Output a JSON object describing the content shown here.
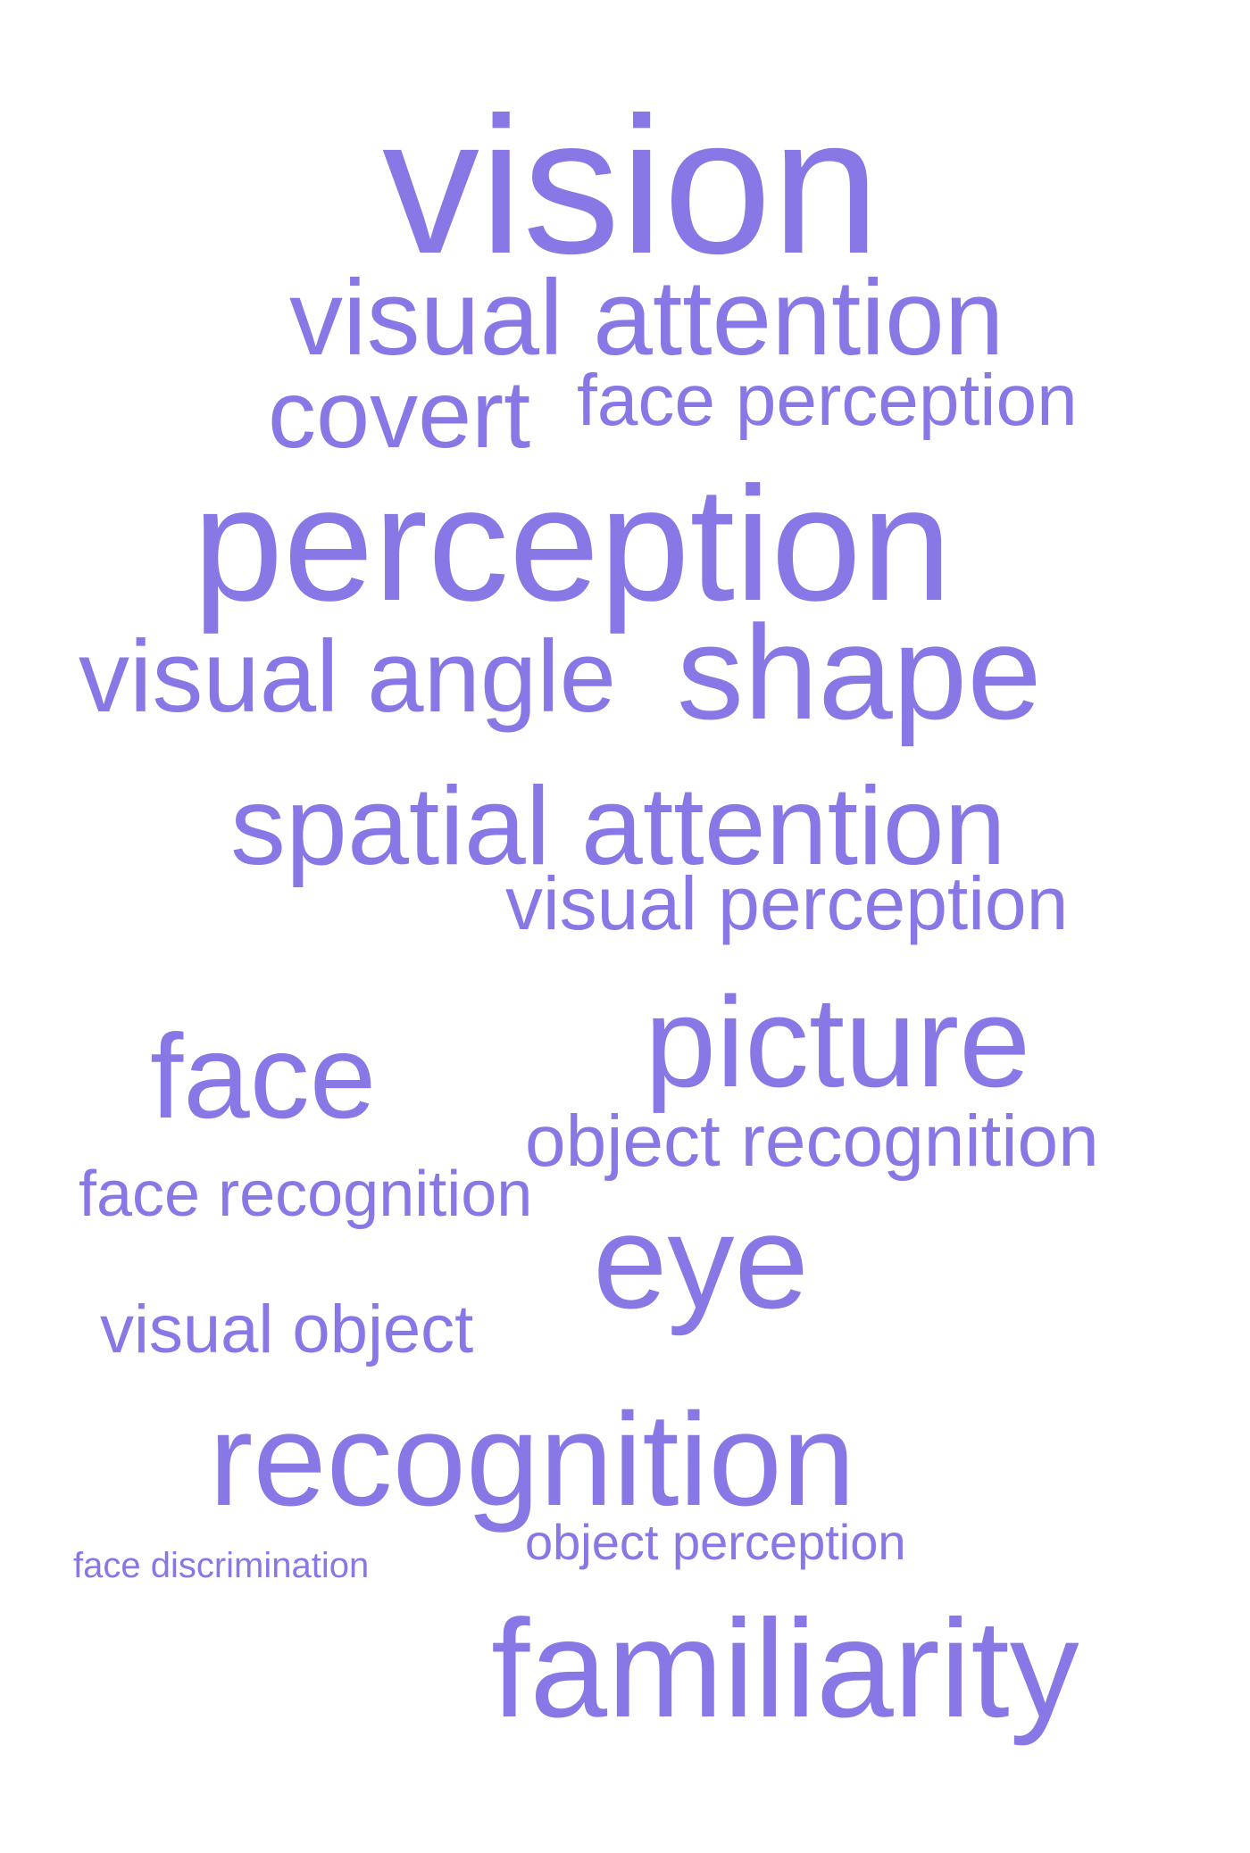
{
  "style": {
    "text_color": "#8878e6",
    "background": "#ffffff"
  },
  "words": [
    {
      "text": "vision"
    },
    {
      "text": "visual attention"
    },
    {
      "text": "covert"
    },
    {
      "text": "face perception"
    },
    {
      "text": "perception"
    },
    {
      "text": "visual angle"
    },
    {
      "text": "shape"
    },
    {
      "text": "spatial attention"
    },
    {
      "text": "visual perception"
    },
    {
      "text": "face"
    },
    {
      "text": "picture"
    },
    {
      "text": "object recognition"
    },
    {
      "text": "face recognition"
    },
    {
      "text": "eye"
    },
    {
      "text": "visual object"
    },
    {
      "text": "recognition"
    },
    {
      "text": "object perception"
    },
    {
      "text": "face discrimination"
    },
    {
      "text": "familiarity"
    }
  ]
}
